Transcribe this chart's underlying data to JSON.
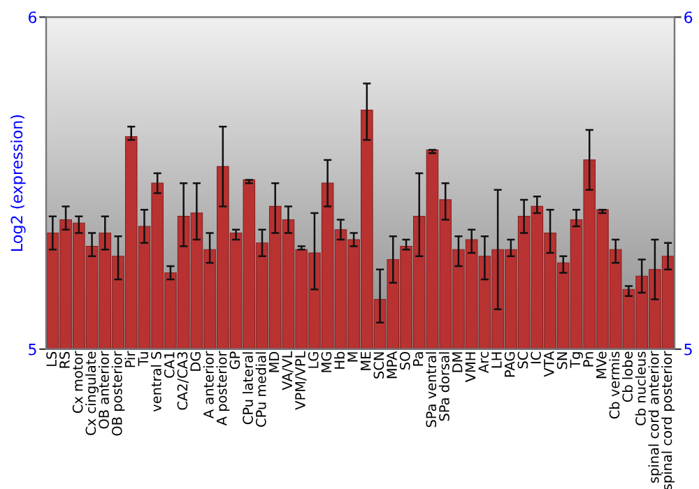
{
  "chart_data": {
    "type": "bar",
    "ylabel": "Log2 (expression)",
    "categories": [
      "LS",
      "RS",
      "Cx motor",
      "Cx cingulate",
      "OB anterior",
      "OB posterior",
      "Pir",
      "Tu",
      "ventral S",
      "CA1",
      "CA2/CA3",
      "DG",
      "A anterior",
      "A posterior",
      "GP",
      "CPu lateral",
      "CPu medial",
      "MD",
      "VA/VL",
      "VPM/VPL",
      "LG",
      "MG",
      "Hb",
      "M",
      "ME",
      "SCN",
      "MPA",
      "SO",
      "Pa",
      "SPa ventral",
      "SPa dorsal",
      "DM",
      "VMH",
      "Arc",
      "LH",
      "PAG",
      "SC",
      "IC",
      "VTA",
      "SN",
      "Tg",
      "Pn",
      "MVe",
      "Cb vermis",
      "Cb lobe",
      "Cb nucleus",
      "spinal cord anterior",
      "spinal cord posterior"
    ],
    "values": [
      5.35,
      5.39,
      5.38,
      5.31,
      5.35,
      5.28,
      5.64,
      5.37,
      5.5,
      5.23,
      5.4,
      5.41,
      5.3,
      5.55,
      5.35,
      5.51,
      5.32,
      5.43,
      5.39,
      5.3,
      5.29,
      5.5,
      5.36,
      5.33,
      5.72,
      5.15,
      5.27,
      5.31,
      5.4,
      5.6,
      5.45,
      5.3,
      5.33,
      5.28,
      5.3,
      5.3,
      5.4,
      5.43,
      5.35,
      5.26,
      5.39,
      5.57,
      5.42,
      5.3,
      5.18,
      5.22,
      5.24,
      5.28
    ],
    "errors": [
      [
        5.3,
        5.4
      ],
      [
        5.36,
        5.43
      ],
      [
        5.35,
        5.4
      ],
      [
        5.28,
        5.35
      ],
      [
        5.3,
        5.4
      ],
      [
        5.21,
        5.34
      ],
      [
        5.63,
        5.67
      ],
      [
        5.32,
        5.42
      ],
      [
        5.47,
        5.53
      ],
      [
        5.21,
        5.25
      ],
      [
        5.31,
        5.5
      ],
      [
        5.33,
        5.5
      ],
      [
        5.26,
        5.35
      ],
      [
        5.43,
        5.67
      ],
      [
        5.33,
        5.36
      ],
      [
        5.5,
        5.51
      ],
      [
        5.28,
        5.36
      ],
      [
        5.35,
        5.5
      ],
      [
        5.35,
        5.43
      ],
      [
        5.3,
        5.31
      ],
      [
        5.18,
        5.41
      ],
      [
        5.43,
        5.57
      ],
      [
        5.33,
        5.39
      ],
      [
        5.31,
        5.35
      ],
      [
        5.63,
        5.8
      ],
      [
        5.08,
        5.24
      ],
      [
        5.2,
        5.34
      ],
      [
        5.3,
        5.33
      ],
      [
        5.28,
        5.53
      ],
      [
        5.59,
        5.6
      ],
      [
        5.39,
        5.5
      ],
      [
        5.25,
        5.34
      ],
      [
        5.29,
        5.36
      ],
      [
        5.21,
        5.34
      ],
      [
        5.12,
        5.48
      ],
      [
        5.28,
        5.33
      ],
      [
        5.35,
        5.45
      ],
      [
        5.41,
        5.46
      ],
      [
        5.29,
        5.42
      ],
      [
        5.23,
        5.28
      ],
      [
        5.37,
        5.42
      ],
      [
        5.48,
        5.66
      ],
      [
        5.41,
        5.42
      ],
      [
        5.26,
        5.33
      ],
      [
        5.16,
        5.19
      ],
      [
        5.17,
        5.27
      ],
      [
        5.15,
        5.33
      ],
      [
        5.24,
        5.32
      ]
    ],
    "color": "#b83232",
    "ylim": [
      5,
      6
    ],
    "yticks": [
      5,
      6
    ],
    "y2lim": [
      5,
      6
    ],
    "y2ticks": [
      5,
      6
    ],
    "grid": false,
    "legend": false
  }
}
